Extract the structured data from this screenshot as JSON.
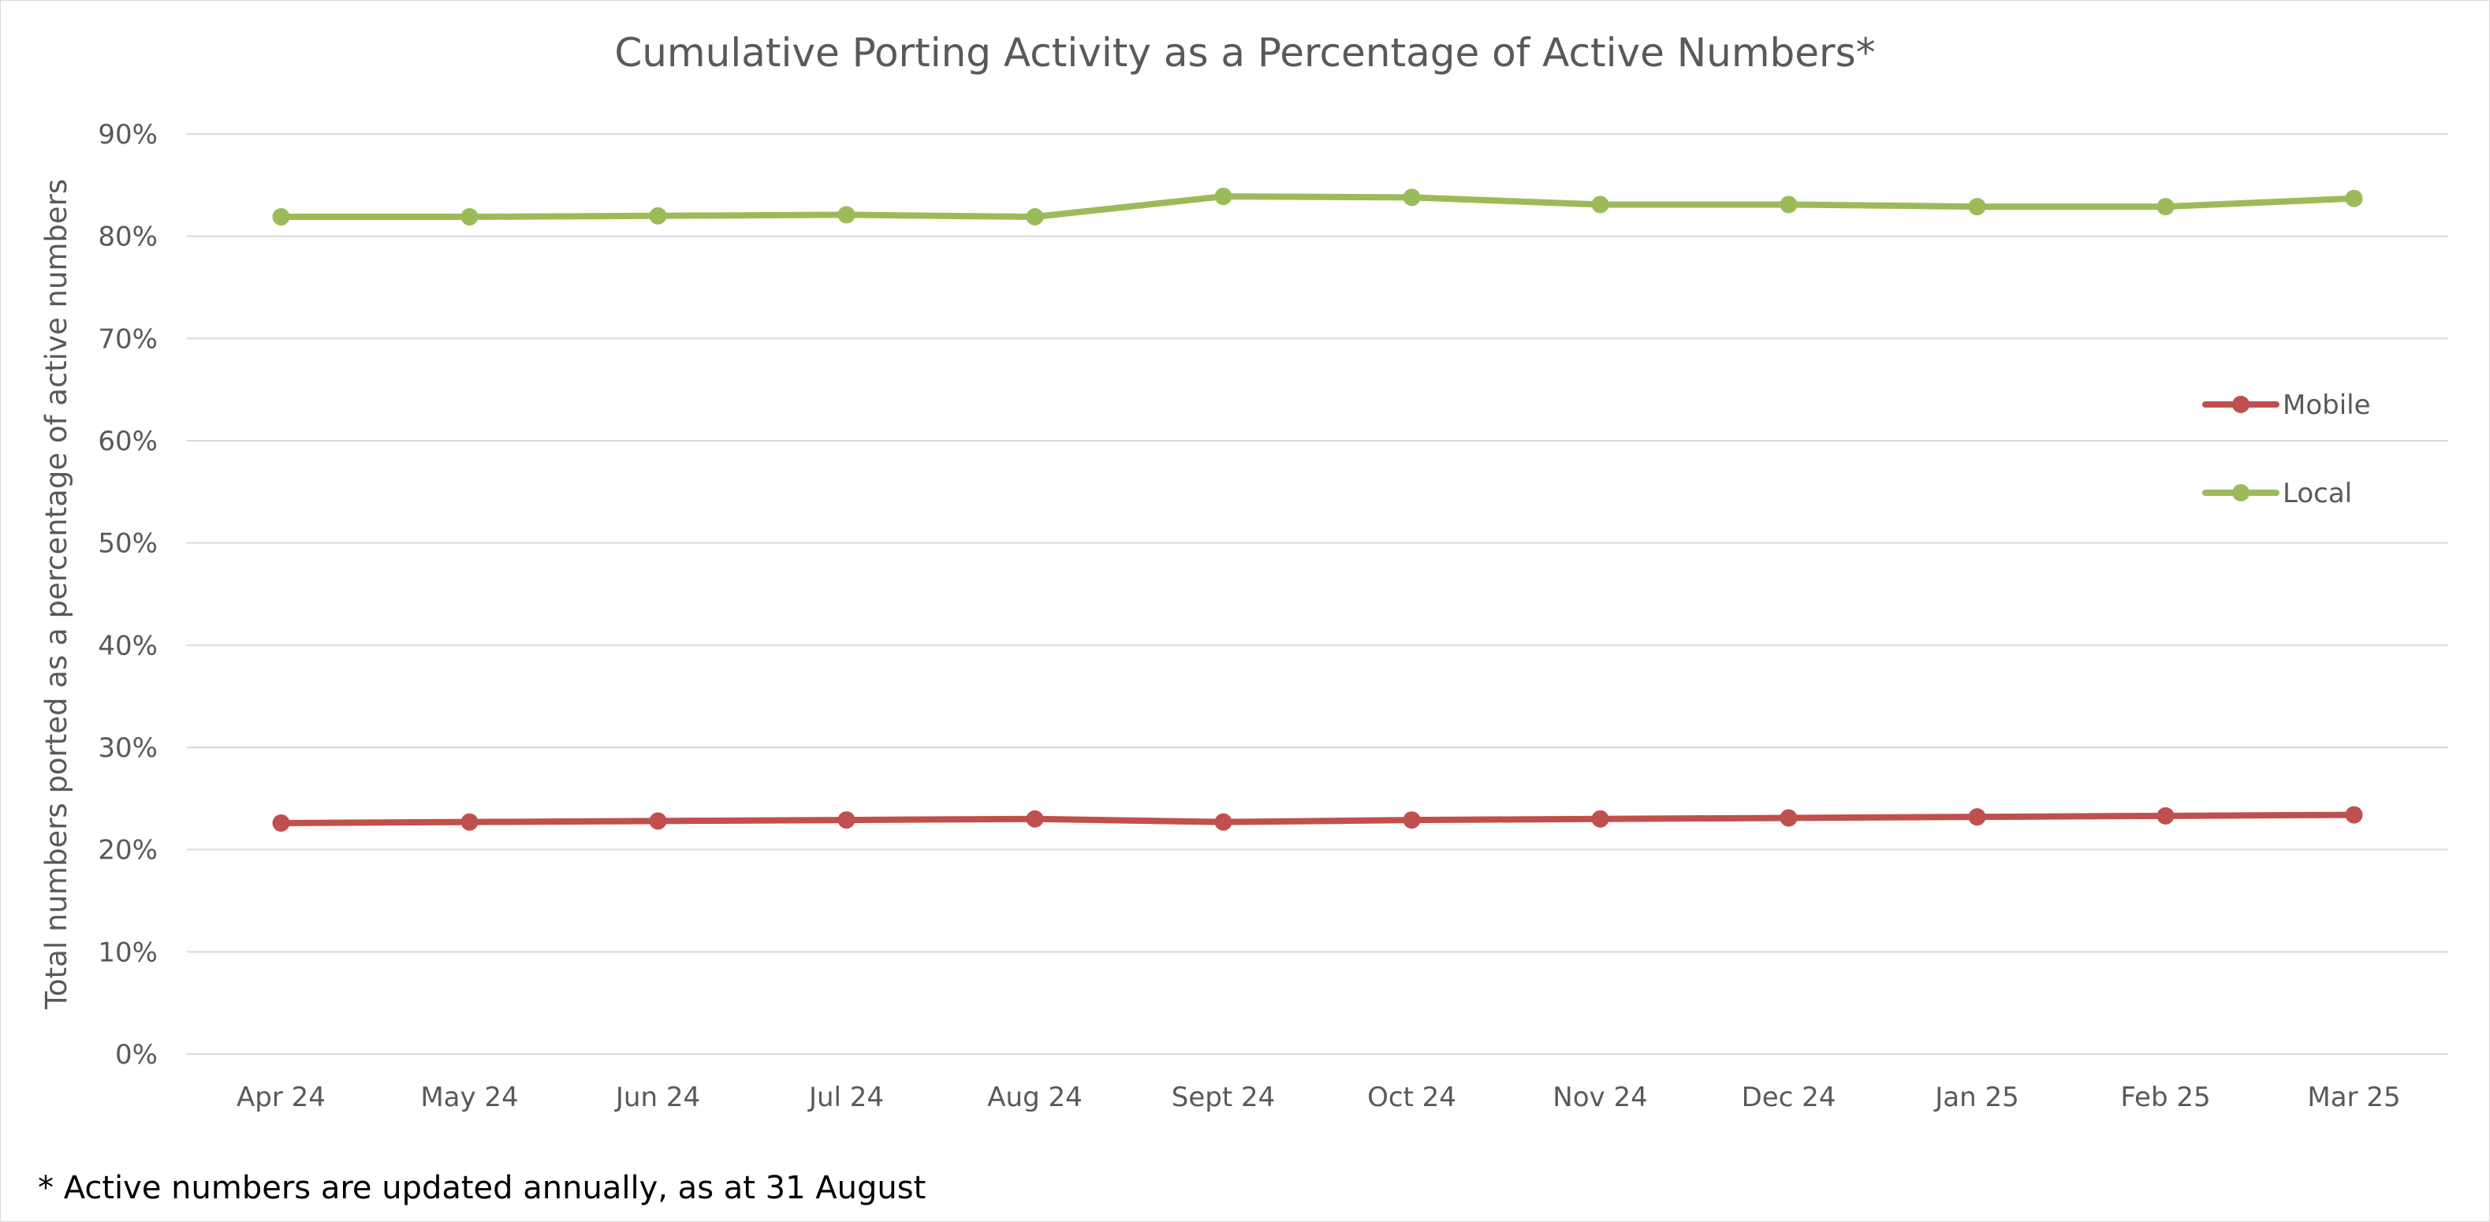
{
  "chart_data": {
    "type": "line",
    "title": "Cumulative Porting Activity as a Percentage of Active Numbers*",
    "xlabel": "",
    "ylabel": "Total numbers ported as a percentage of active numbers",
    "categories": [
      "Apr 24",
      "May 24",
      "Jun 24",
      "Jul 24",
      "Aug 24",
      "Sept 24",
      "Oct 24",
      "Nov 24",
      "Dec 24",
      "Jan 25",
      "Feb 25",
      "Mar 25"
    ],
    "ylim": [
      0,
      90
    ],
    "yticks": [
      "0%",
      "10%",
      "20%",
      "30%",
      "40%",
      "50%",
      "60%",
      "70%",
      "80%",
      "90%"
    ],
    "grid": true,
    "legend_position": "right",
    "series": [
      {
        "name": "Mobile",
        "color": "#c0504d",
        "values": [
          22.6,
          22.7,
          22.8,
          22.9,
          23.0,
          22.7,
          22.9,
          23.0,
          23.1,
          23.2,
          23.3,
          23.4
        ]
      },
      {
        "name": "Local",
        "color": "#9bbb59",
        "values": [
          81.9,
          81.9,
          82.0,
          82.1,
          81.9,
          83.9,
          83.8,
          83.1,
          83.1,
          82.9,
          82.9,
          83.7
        ]
      }
    ]
  },
  "footnote": "* Active numbers are updated annually, as at 31 August"
}
